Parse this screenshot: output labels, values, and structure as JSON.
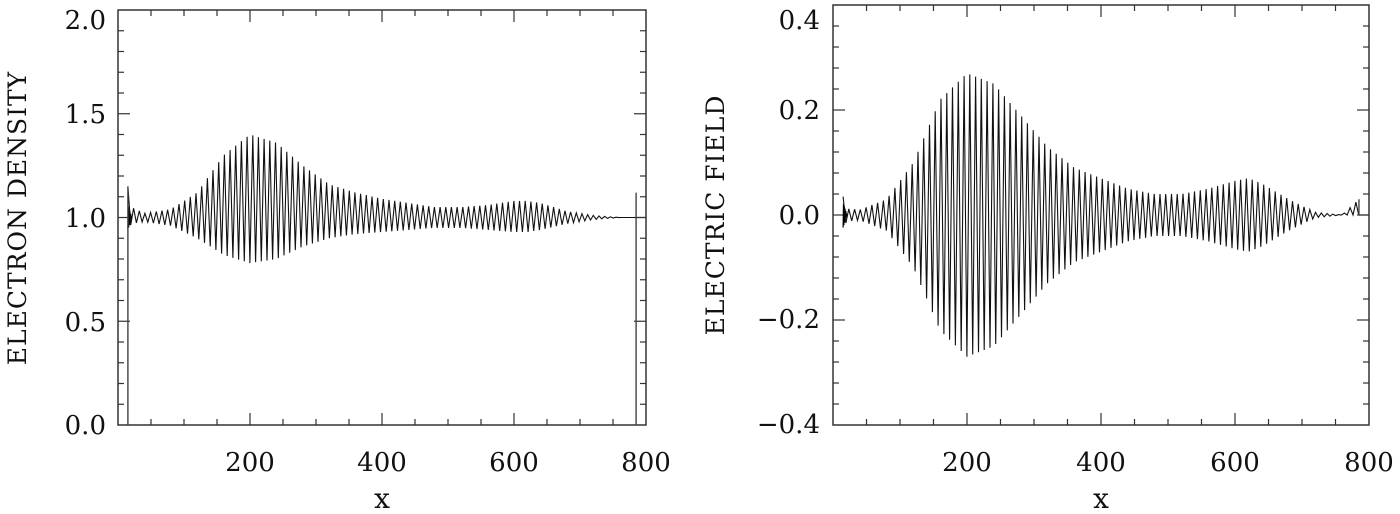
{
  "chart_data": [
    {
      "type": "line",
      "title": "",
      "xlabel": "x",
      "ylabel": "ELECTRON DENSITY",
      "xlim": [
        0,
        800
      ],
      "ylim": [
        0.0,
        2.0
      ],
      "xticks": [
        "200",
        "400",
        "600",
        "800"
      ],
      "yticks": [
        "0.0",
        "0.5",
        "1.0",
        "1.5",
        "2.0"
      ],
      "grid": false,
      "legend": null,
      "description": "Rapidly oscillating wave train around 1.0 with a modulated envelope",
      "baseline": 1.0,
      "envelope": {
        "x": [
          15,
          20,
          40,
          80,
          120,
          160,
          200,
          240,
          280,
          320,
          360,
          400,
          440,
          480,
          520,
          560,
          600,
          620,
          640,
          680,
          720,
          760,
          785
        ],
        "upper": [
          1.15,
          1.05,
          1.02,
          1.04,
          1.12,
          1.3,
          1.4,
          1.36,
          1.25,
          1.16,
          1.12,
          1.09,
          1.07,
          1.05,
          1.05,
          1.06,
          1.08,
          1.08,
          1.07,
          1.03,
          1.01,
          1.0,
          1.0
        ],
        "lower": [
          0.92,
          0.97,
          0.98,
          0.96,
          0.9,
          0.82,
          0.78,
          0.8,
          0.86,
          0.9,
          0.92,
          0.93,
          0.94,
          0.95,
          0.95,
          0.94,
          0.93,
          0.93,
          0.94,
          0.97,
          0.99,
          1.0,
          1.0
        ]
      },
      "boundary_spikes": [
        {
          "x": 15,
          "ymin": 0.0,
          "ymax": 1.15
        },
        {
          "x": 785,
          "ymin": 0.0,
          "ymax": 1.12
        }
      ]
    },
    {
      "type": "line",
      "title": "",
      "xlabel": "x",
      "ylabel": "ELECTRIC FIELD",
      "xlim": [
        0,
        800
      ],
      "ylim": [
        -0.4,
        0.4
      ],
      "xticks": [
        "200",
        "400",
        "600",
        "800"
      ],
      "yticks": [
        "-0.4",
        "-0.2",
        "0.0",
        "0.2",
        "0.4"
      ],
      "grid": false,
      "legend": null,
      "description": "Rapidly oscillating electric field wave train centered at 0 with modulated envelope",
      "baseline": 0.0,
      "envelope": {
        "x": [
          15,
          20,
          40,
          80,
          120,
          160,
          200,
          240,
          280,
          320,
          360,
          400,
          440,
          480,
          520,
          560,
          600,
          620,
          640,
          680,
          720,
          760,
          785
        ],
        "upper": [
          0.035,
          0.012,
          0.01,
          0.03,
          0.1,
          0.22,
          0.27,
          0.25,
          0.19,
          0.13,
          0.09,
          0.07,
          0.05,
          0.04,
          0.04,
          0.05,
          0.065,
          0.07,
          0.06,
          0.03,
          0.005,
          0.0,
          0.03
        ],
        "lower": [
          -0.035,
          -0.012,
          -0.01,
          -0.03,
          -0.1,
          -0.22,
          -0.27,
          -0.25,
          -0.19,
          -0.13,
          -0.09,
          -0.07,
          -0.05,
          -0.04,
          -0.04,
          -0.05,
          -0.065,
          -0.07,
          -0.06,
          -0.03,
          -0.005,
          0.0,
          0.0
        ]
      },
      "boundary_spikes": [
        {
          "x": 785,
          "ymin": 0.0,
          "ymax": 0.03
        }
      ]
    }
  ],
  "charts": {
    "left": {
      "ylabel": "ELECTRON DENSITY",
      "xlabel": "x",
      "xtick_labels": [
        "200",
        "400",
        "600",
        "800"
      ],
      "ytick_labels": [
        "2.0",
        "1.5",
        "1.0",
        "0.5",
        "0.0"
      ]
    },
    "right": {
      "ylabel": "ELECTRIC FIELD",
      "xlabel": "x",
      "xtick_labels": [
        "200",
        "400",
        "600",
        "800"
      ],
      "ytick_labels": [
        "0.4",
        "0.2",
        "0.0",
        "−0.2",
        "−0.4"
      ]
    }
  }
}
